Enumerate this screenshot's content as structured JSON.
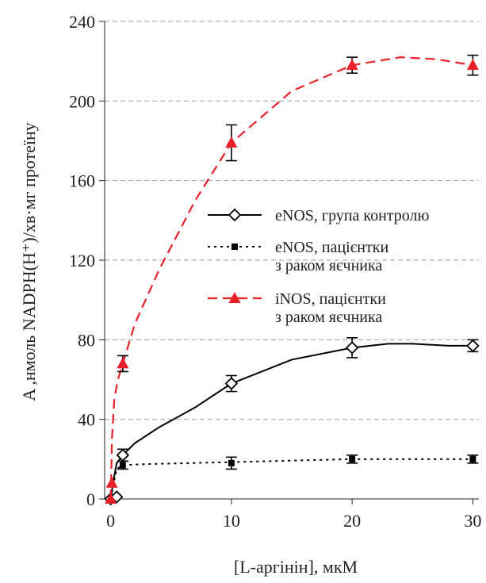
{
  "chart_data": {
    "type": "line",
    "xlabel": "[L-аргінін], мкМ",
    "ylabel": "A ,нмоль NADPH(H⁺)/хв·мг протеїну",
    "xlim": [
      -0.5,
      30.5
    ],
    "ylim": [
      0,
      240
    ],
    "x_ticks": [
      0,
      10,
      20,
      30
    ],
    "y_ticks": [
      0,
      40,
      80,
      120,
      160,
      200,
      240
    ],
    "grid": "horizontal dashed",
    "legend_position": "center-right",
    "series": [
      {
        "name": "eNOS, група контролю",
        "style": "solid",
        "marker": "diamond-open",
        "color": "#000000",
        "x": [
          0,
          0.5,
          1,
          10,
          20,
          30
        ],
        "y": [
          0,
          1,
          22,
          58,
          76,
          77
        ],
        "error": [
          0,
          0,
          3,
          4,
          5,
          3
        ],
        "curve_x": [
          0,
          0.25,
          0.5,
          1,
          2,
          4,
          7,
          10,
          15,
          20,
          23,
          25,
          28,
          30
        ],
        "curve_y": [
          0,
          10,
          18,
          22,
          28,
          36,
          46,
          58,
          70,
          76,
          78,
          78,
          77,
          77
        ]
      },
      {
        "name": "eNOS, пацієнтки з раком яєчника",
        "name_lines": [
          "eNOS, пацієнтки",
          "з раком яєчника"
        ],
        "style": "dotted",
        "marker": "square-filled",
        "color": "#000000",
        "x": [
          0,
          0.5,
          1,
          10,
          20,
          30
        ],
        "y": [
          0,
          1,
          17,
          18,
          20,
          20
        ],
        "error": [
          0,
          0,
          2,
          3,
          2,
          2
        ],
        "curve_x": [
          0,
          0.25,
          0.5,
          1,
          3,
          10,
          20,
          30
        ],
        "curve_y": [
          0,
          8,
          15,
          17,
          17.5,
          18.5,
          20,
          20
        ]
      },
      {
        "name": "iNOS, пацієнтки з раком яєчника",
        "name_lines": [
          "iNOS, пацієнтки",
          "з раком яєчника"
        ],
        "style": "dashed",
        "marker": "triangle-filled",
        "color": "#e8202a",
        "x": [
          0,
          0.1,
          1,
          10,
          20,
          30
        ],
        "y": [
          0,
          8,
          68,
          179,
          218,
          218
        ],
        "error": [
          0,
          0,
          4,
          9,
          4,
          5
        ],
        "curve_x": [
          0,
          0.05,
          0.1,
          0.3,
          0.6,
          1,
          2,
          4,
          7,
          10,
          15,
          20,
          24,
          27,
          30
        ],
        "curve_y": [
          0,
          12,
          30,
          50,
          60,
          68,
          88,
          115,
          150,
          179,
          205,
          218,
          222,
          221,
          218
        ]
      }
    ]
  }
}
